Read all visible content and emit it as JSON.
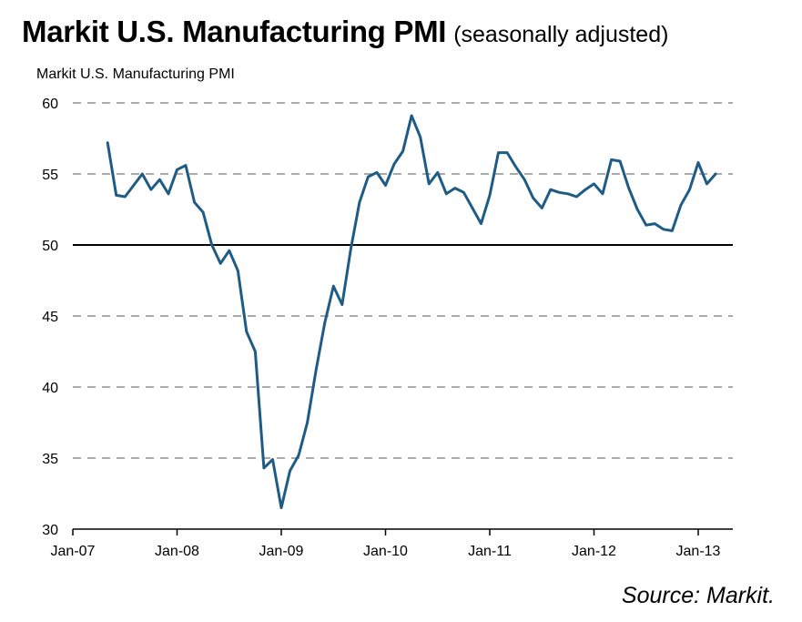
{
  "title": {
    "main": "Markit U.S. Manufacturing PMI",
    "sub": "(seasonally adjusted)"
  },
  "source": "Source: Markit.",
  "chart_data": {
    "type": "line",
    "ylabel": "Markit U.S. Manufacturing PMI",
    "xlabel": "",
    "ylim": [
      30,
      60
    ],
    "yticks": [
      30,
      35,
      40,
      45,
      50,
      55,
      60
    ],
    "xlim": [
      "2007-01",
      "2013-04"
    ],
    "xticks": [
      "Jan-07",
      "Jan-08",
      "Jan-09",
      "Jan-10",
      "Jan-11",
      "Jan-12",
      "Jan-13"
    ],
    "grid": "horizontal dashed",
    "reference_line": 50,
    "line_color": "#1f5c85",
    "series": [
      {
        "x": [
          "2007-05",
          "2007-06",
          "2007-07",
          "2007-08",
          "2007-09",
          "2007-10",
          "2007-11",
          "2007-12",
          "2008-01",
          "2008-02",
          "2008-03",
          "2008-04",
          "2008-05",
          "2008-06",
          "2008-07",
          "2008-08",
          "2008-09",
          "2008-10",
          "2008-11",
          "2008-12",
          "2009-01",
          "2009-02",
          "2009-03",
          "2009-04",
          "2009-05",
          "2009-06",
          "2009-07",
          "2009-08",
          "2009-09",
          "2009-10",
          "2009-11",
          "2009-12",
          "2010-01",
          "2010-02",
          "2010-03",
          "2010-04",
          "2010-05",
          "2010-06",
          "2010-07",
          "2010-08",
          "2010-09",
          "2010-10",
          "2010-11",
          "2010-12",
          "2011-01",
          "2011-02",
          "2011-03",
          "2011-04",
          "2011-05",
          "2011-06",
          "2011-07",
          "2011-08",
          "2011-09",
          "2011-10",
          "2011-11",
          "2011-12",
          "2012-01",
          "2012-02",
          "2012-03",
          "2012-04",
          "2012-05",
          "2012-06",
          "2012-07",
          "2012-08",
          "2012-09",
          "2012-10",
          "2012-11",
          "2012-12",
          "2013-01",
          "2013-02",
          "2013-03"
        ],
        "values": [
          57.2,
          53.5,
          53.4,
          54.2,
          55.0,
          53.9,
          54.6,
          53.6,
          55.3,
          55.6,
          53.0,
          52.3,
          50.0,
          48.7,
          49.6,
          48.2,
          43.9,
          42.5,
          34.3,
          34.9,
          31.5,
          34.1,
          35.2,
          37.5,
          41.2,
          44.5,
          47.1,
          45.8,
          49.7,
          53.0,
          54.8,
          55.1,
          54.2,
          55.7,
          56.6,
          59.1,
          57.6,
          54.3,
          55.1,
          53.6,
          54.0,
          53.7,
          52.6,
          51.5,
          53.5,
          56.5,
          56.5,
          55.5,
          54.6,
          53.3,
          52.6,
          53.9,
          53.7,
          53.6,
          53.4,
          53.9,
          54.3,
          53.6,
          56.0,
          55.9,
          54.0,
          52.5,
          51.4,
          51.5,
          51.1,
          51.0,
          52.8,
          53.9,
          55.8,
          54.3,
          55.0
        ]
      }
    ]
  }
}
